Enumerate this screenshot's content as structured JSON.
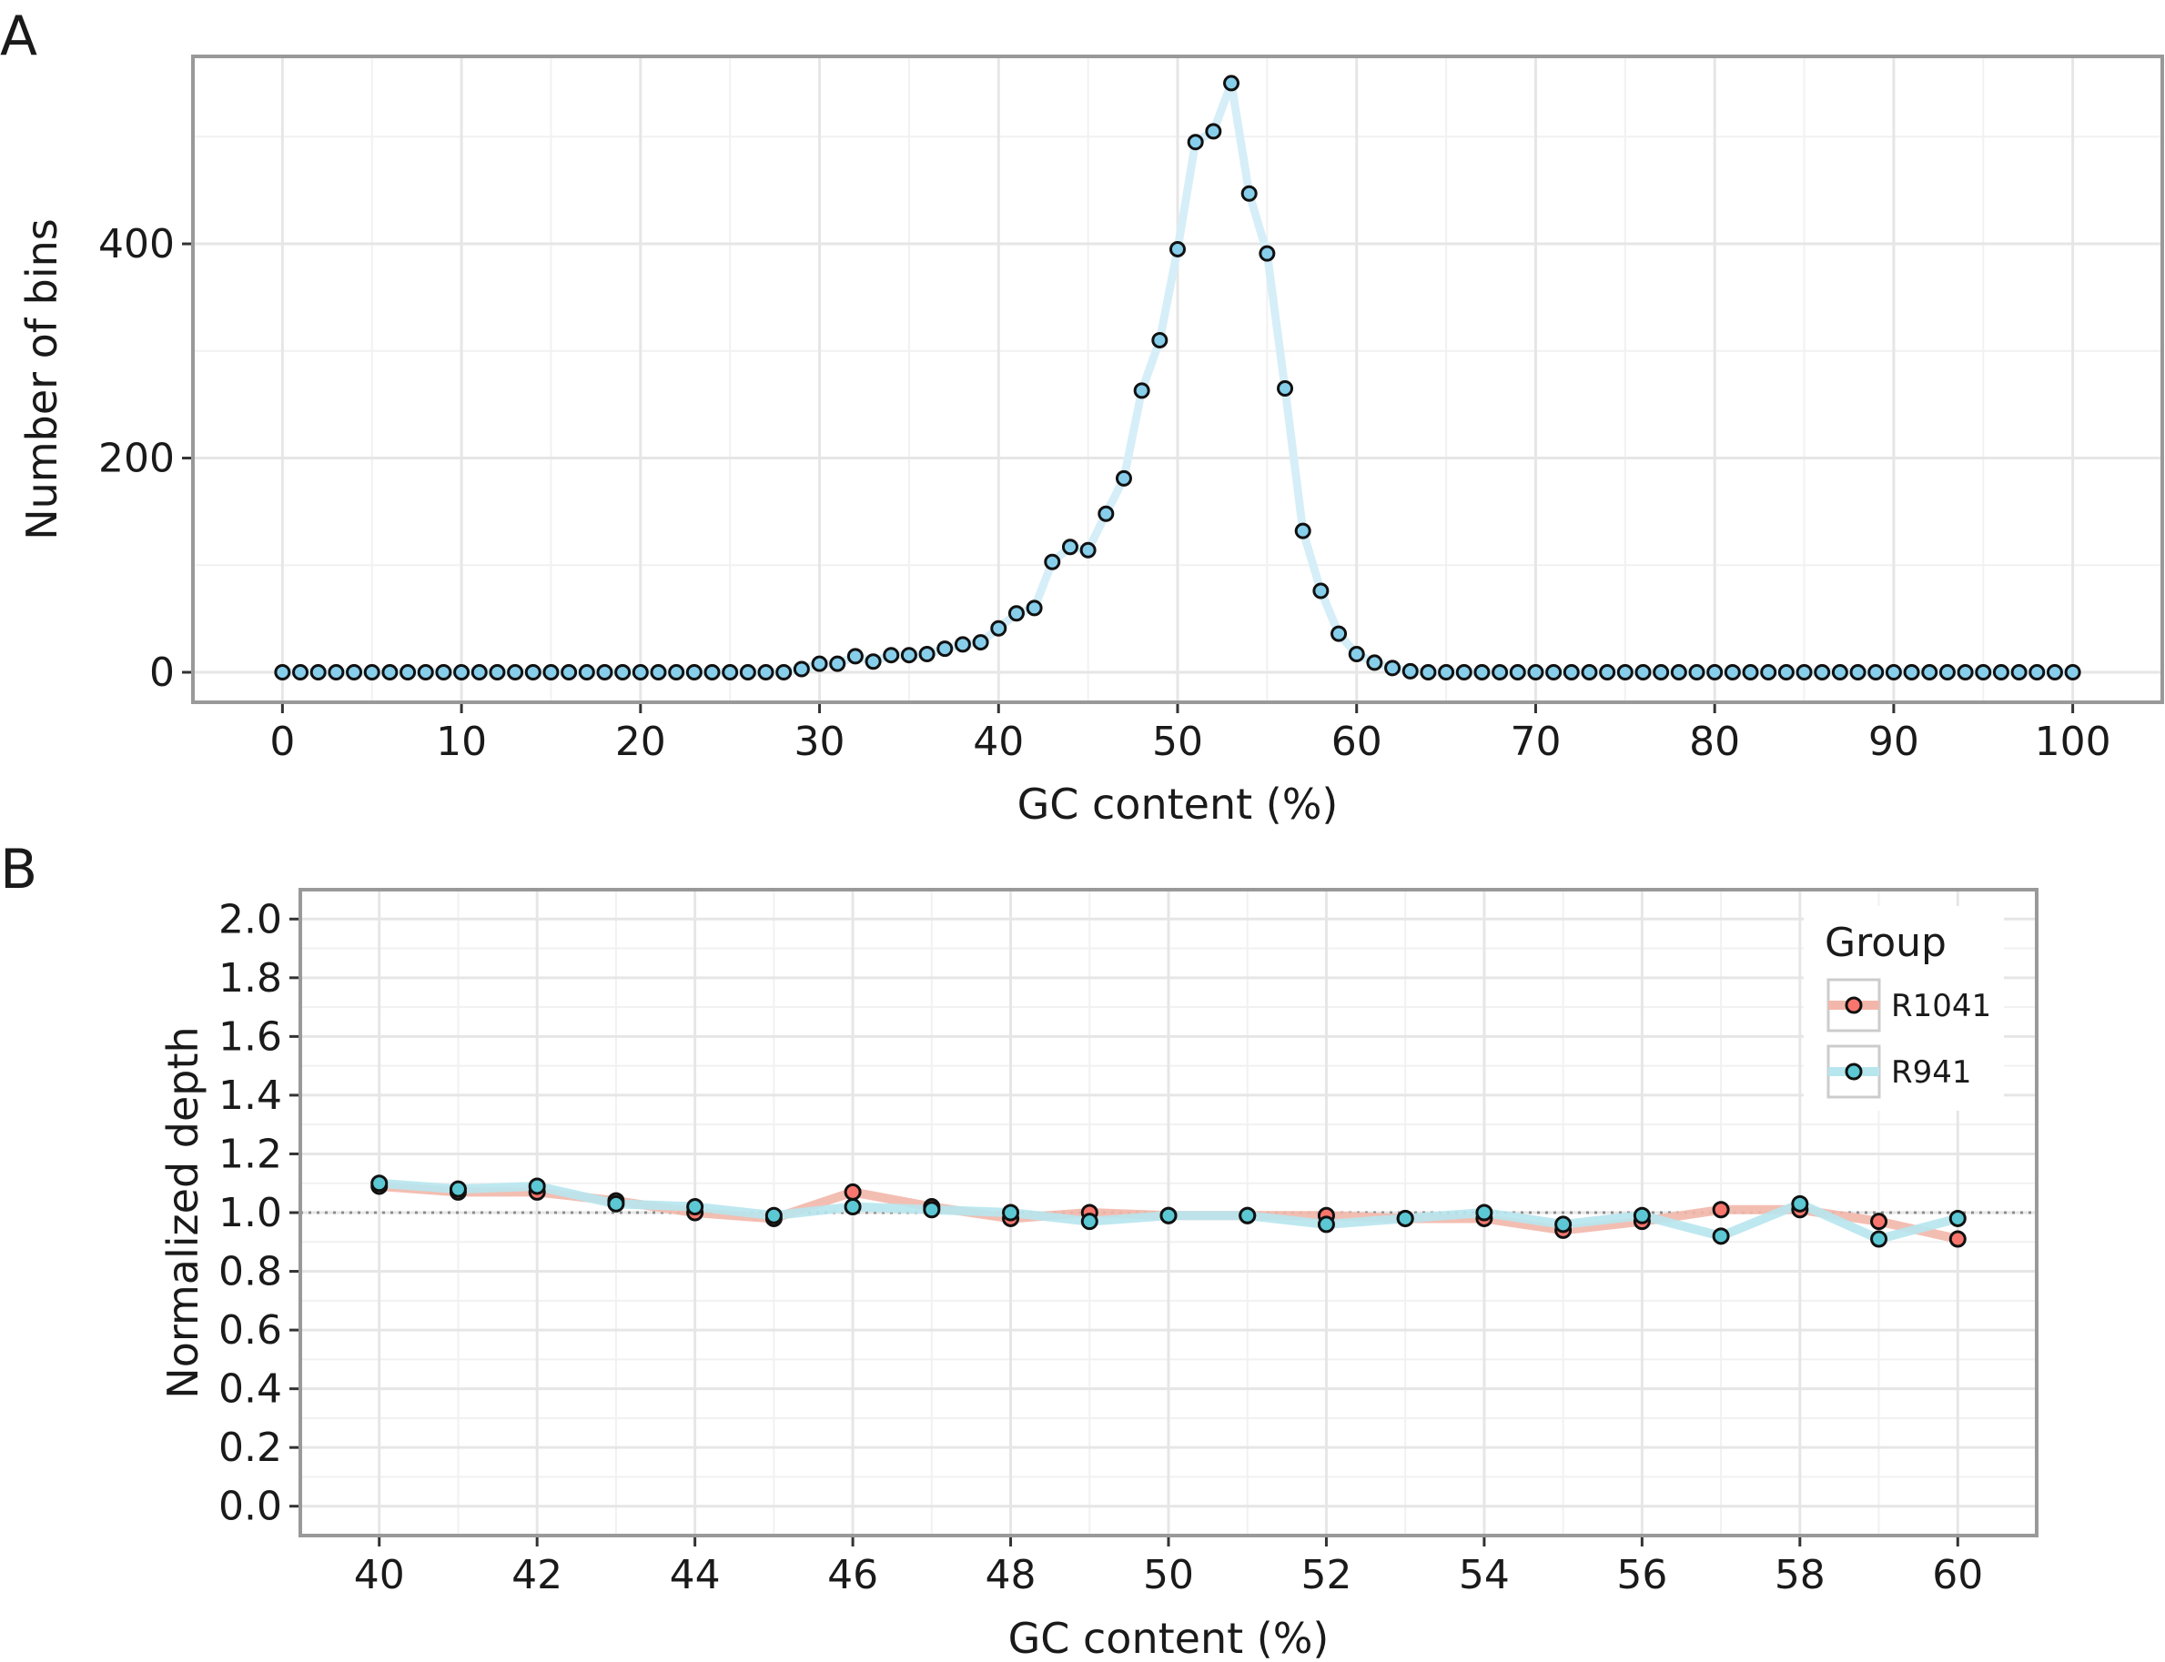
{
  "panels": {
    "a": {
      "letter": "A"
    },
    "b": {
      "letter": "B"
    }
  },
  "colors": {
    "grid": "#e6e6e6",
    "frame": "#999999",
    "bins_line": "#d6eef8",
    "bins_point": "#87ceeb",
    "r1041_line": "#f2b7aa",
    "r1041_point": "#f8766d",
    "r941_line": "#b7e6ee",
    "r941_point": "#5bc8d4",
    "reference": "#8c8c8c"
  },
  "chart_data": [
    {
      "type": "line",
      "panel": "A",
      "title": "",
      "xlabel": "GC content (%)",
      "ylabel": "Number of bins",
      "xlim": [
        -5,
        105
      ],
      "ylim": [
        -28,
        575
      ],
      "xticks": [
        0,
        10,
        20,
        30,
        40,
        50,
        60,
        70,
        80,
        90,
        100
      ],
      "yticks": [
        0,
        200,
        400
      ],
      "grid": true,
      "legend": "none",
      "markers": true,
      "x": [
        0,
        1,
        2,
        3,
        4,
        5,
        6,
        7,
        8,
        9,
        10,
        11,
        12,
        13,
        14,
        15,
        16,
        17,
        18,
        19,
        20,
        21,
        22,
        23,
        24,
        25,
        26,
        27,
        28,
        29,
        30,
        31,
        32,
        33,
        34,
        35,
        36,
        37,
        38,
        39,
        40,
        41,
        42,
        43,
        44,
        45,
        46,
        47,
        48,
        49,
        50,
        51,
        52,
        53,
        54,
        55,
        56,
        57,
        58,
        59,
        60,
        61,
        62,
        63,
        64,
        65,
        66,
        67,
        68,
        69,
        70,
        71,
        72,
        73,
        74,
        75,
        76,
        77,
        78,
        79,
        80,
        81,
        82,
        83,
        84,
        85,
        86,
        87,
        88,
        89,
        90,
        91,
        92,
        93,
        94,
        95,
        96,
        97,
        98,
        99,
        100
      ],
      "values": [
        0,
        0,
        0,
        0,
        0,
        0,
        0,
        0,
        0,
        0,
        0,
        0,
        0,
        0,
        0,
        0,
        0,
        0,
        0,
        0,
        0,
        0,
        0,
        0,
        0,
        0,
        0,
        0,
        0,
        3,
        8,
        8,
        15,
        10,
        16,
        16,
        17,
        22,
        26,
        28,
        41,
        55,
        60,
        103,
        117,
        114,
        148,
        181,
        263,
        310,
        395,
        495,
        505,
        550,
        447,
        391,
        265,
        132,
        76,
        36,
        17,
        9,
        4,
        1,
        0,
        0,
        0,
        0,
        0,
        0,
        0,
        0,
        0,
        0,
        0,
        0,
        0,
        0,
        0,
        0,
        0,
        0,
        0,
        0,
        0,
        0,
        0,
        0,
        0,
        0,
        0,
        0,
        0,
        0,
        0,
        0,
        0,
        0,
        0,
        0,
        0
      ]
    },
    {
      "type": "line",
      "panel": "B",
      "title": "",
      "xlabel": "GC content (%)",
      "ylabel": "Normalized depth",
      "xlim": [
        39,
        61
      ],
      "ylim": [
        -0.1,
        2.1
      ],
      "xticks": [
        40,
        42,
        44,
        46,
        48,
        50,
        52,
        54,
        56,
        58,
        60
      ],
      "yticks": [
        0.0,
        0.2,
        0.4,
        0.6,
        0.8,
        1.0,
        1.2,
        1.4,
        1.6,
        1.8,
        2.0
      ],
      "ytick_labels": [
        "0.0",
        "0.2",
        "0.4",
        "0.6",
        "0.8",
        "1.0",
        "1.2",
        "1.4",
        "1.6",
        "1.8",
        "2.0"
      ],
      "grid": true,
      "reference_line": 1.0,
      "legend": {
        "title": "Group",
        "position": "top-right"
      },
      "x": [
        40,
        41,
        42,
        43,
        44,
        45,
        46,
        47,
        48,
        49,
        50,
        51,
        52,
        53,
        54,
        55,
        56,
        57,
        58,
        59,
        60
      ],
      "series": [
        {
          "name": "R1041",
          "values": [
            1.09,
            1.07,
            1.07,
            1.04,
            1.0,
            0.98,
            1.07,
            1.02,
            0.98,
            1.0,
            0.99,
            0.99,
            0.99,
            0.98,
            0.98,
            0.94,
            0.97,
            1.01,
            1.01,
            0.97,
            0.91
          ]
        },
        {
          "name": "R941",
          "values": [
            1.1,
            1.08,
            1.09,
            1.03,
            1.02,
            0.99,
            1.02,
            1.01,
            1.0,
            0.97,
            0.99,
            0.99,
            0.96,
            0.98,
            1.0,
            0.96,
            0.99,
            0.92,
            1.03,
            0.91,
            0.98
          ]
        }
      ]
    }
  ]
}
